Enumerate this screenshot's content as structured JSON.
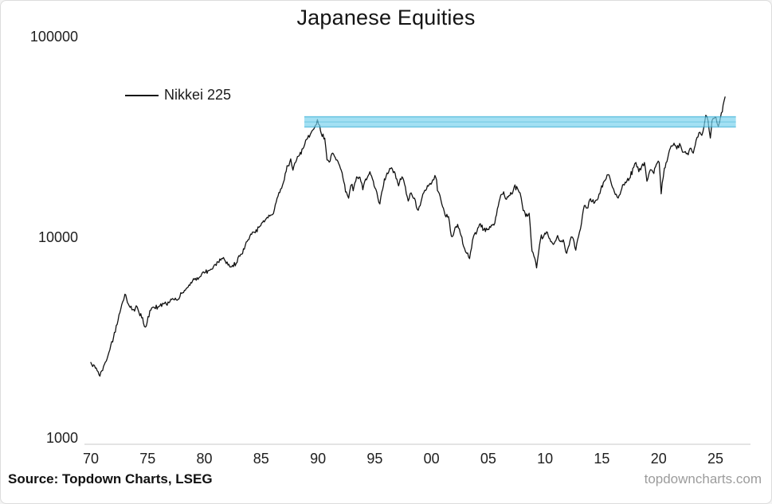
{
  "source": "Source: Topdown Charts, LSEG",
  "watermark": "topdowncharts.com",
  "chart_data": {
    "type": "line",
    "title": "Japanese Equities",
    "xlabel": "",
    "ylabel": "",
    "y_scale": "log",
    "ylim": [
      1000,
      100000
    ],
    "xlim": [
      1969.3,
      2027.2
    ],
    "grid": false,
    "legend_position": "upper-left",
    "y_ticks": [
      {
        "value": 100000,
        "label": "100000"
      },
      {
        "value": 10000,
        "label": "10000"
      },
      {
        "value": 1000,
        "label": "1000"
      }
    ],
    "x_ticks": [
      {
        "year": 1970,
        "label": "70"
      },
      {
        "year": 1975,
        "label": "75"
      },
      {
        "year": 1980,
        "label": "80"
      },
      {
        "year": 1985,
        "label": "85"
      },
      {
        "year": 1990,
        "label": "90"
      },
      {
        "year": 1995,
        "label": "95"
      },
      {
        "year": 2000,
        "label": "00"
      },
      {
        "year": 2005,
        "label": "05"
      },
      {
        "year": 2010,
        "label": "10"
      },
      {
        "year": 2015,
        "label": "15"
      },
      {
        "year": 2020,
        "label": "20"
      },
      {
        "year": 2025,
        "label": "25"
      }
    ],
    "resistance_band": {
      "from_year": 1988.8,
      "to_year": 2026.8,
      "value_top": 40200,
      "value_bottom": 35800,
      "fill": "#7dd4ee",
      "edge": "#35aed6",
      "opacity": 0.7
    },
    "series": [
      {
        "name": "Nikkei 225",
        "color": "#111111",
        "points": [
          [
            1970.0,
            2400
          ],
          [
            1970.4,
            2250
          ],
          [
            1970.8,
            2050
          ],
          [
            1971.2,
            2350
          ],
          [
            1971.6,
            2700
          ],
          [
            1972.0,
            3200
          ],
          [
            1972.4,
            3900
          ],
          [
            1972.8,
            4800
          ],
          [
            1973.0,
            5250
          ],
          [
            1973.3,
            4700
          ],
          [
            1973.7,
            4400
          ],
          [
            1974.0,
            4600
          ],
          [
            1974.4,
            4200
          ],
          [
            1974.8,
            3600
          ],
          [
            1975.2,
            4350
          ],
          [
            1975.6,
            4500
          ],
          [
            1976.0,
            4550
          ],
          [
            1976.4,
            4700
          ],
          [
            1976.8,
            4800
          ],
          [
            1977.2,
            5000
          ],
          [
            1977.6,
            4900
          ],
          [
            1978.0,
            5300
          ],
          [
            1978.4,
            5600
          ],
          [
            1978.8,
            6000
          ],
          [
            1979.2,
            6300
          ],
          [
            1979.6,
            6400
          ],
          [
            1980.0,
            6700
          ],
          [
            1980.4,
            6900
          ],
          [
            1980.8,
            7200
          ],
          [
            1981.2,
            7600
          ],
          [
            1981.6,
            7900
          ],
          [
            1982.0,
            7600
          ],
          [
            1982.4,
            7200
          ],
          [
            1982.8,
            7500
          ],
          [
            1983.2,
            8300
          ],
          [
            1983.6,
            9200
          ],
          [
            1984.0,
            10200
          ],
          [
            1984.4,
            10700
          ],
          [
            1984.8,
            11300
          ],
          [
            1985.2,
            12200
          ],
          [
            1985.6,
            12600
          ],
          [
            1986.0,
            13100
          ],
          [
            1986.4,
            15800
          ],
          [
            1986.8,
            17700
          ],
          [
            1987.2,
            21500
          ],
          [
            1987.6,
            24800
          ],
          [
            1987.8,
            21800
          ],
          [
            1988.2,
            25500
          ],
          [
            1988.6,
            27800
          ],
          [
            1989.0,
            31000
          ],
          [
            1989.4,
            33500
          ],
          [
            1989.7,
            35500
          ],
          [
            1989.95,
            38900
          ],
          [
            1990.15,
            36500
          ],
          [
            1990.3,
            33000
          ],
          [
            1990.6,
            31500
          ],
          [
            1990.8,
            24500
          ],
          [
            1991.0,
            23900
          ],
          [
            1991.3,
            26500
          ],
          [
            1991.6,
            24500
          ],
          [
            1991.9,
            23000
          ],
          [
            1992.2,
            20000
          ],
          [
            1992.5,
            17000
          ],
          [
            1992.7,
            15800
          ],
          [
            1992.9,
            18300
          ],
          [
            1993.1,
            17200
          ],
          [
            1993.4,
            20200
          ],
          [
            1993.7,
            20100
          ],
          [
            1993.95,
            17400
          ],
          [
            1994.2,
            19700
          ],
          [
            1994.5,
            20800
          ],
          [
            1994.8,
            19700
          ],
          [
            1995.1,
            17500
          ],
          [
            1995.45,
            14800
          ],
          [
            1995.7,
            17500
          ],
          [
            1996.0,
            20300
          ],
          [
            1996.4,
            22200
          ],
          [
            1996.8,
            21000
          ],
          [
            1997.1,
            18200
          ],
          [
            1997.4,
            20200
          ],
          [
            1997.7,
            18000
          ],
          [
            1997.95,
            15300
          ],
          [
            1998.2,
            16800
          ],
          [
            1998.5,
            15800
          ],
          [
            1998.75,
            13900
          ],
          [
            1999.0,
            14500
          ],
          [
            1999.4,
            17300
          ],
          [
            1999.8,
            18500
          ],
          [
            2000.1,
            19500
          ],
          [
            2000.3,
            20500
          ],
          [
            2000.6,
            17000
          ],
          [
            2000.9,
            14800
          ],
          [
            2001.2,
            13000
          ],
          [
            2001.5,
            12800
          ],
          [
            2001.75,
            10200
          ],
          [
            2002.0,
            10800
          ],
          [
            2002.3,
            11700
          ],
          [
            2002.6,
            10300
          ],
          [
            2002.9,
            8900
          ],
          [
            2003.1,
            8400
          ],
          [
            2003.35,
            7900
          ],
          [
            2003.7,
            10200
          ],
          [
            2004.0,
            10800
          ],
          [
            2004.3,
            11800
          ],
          [
            2004.6,
            11000
          ],
          [
            2004.9,
            11000
          ],
          [
            2005.2,
            11300
          ],
          [
            2005.5,
            11600
          ],
          [
            2005.8,
            14000
          ],
          [
            2006.1,
            16400
          ],
          [
            2006.35,
            17000
          ],
          [
            2006.6,
            15600
          ],
          [
            2006.9,
            16300
          ],
          [
            2007.2,
            17300
          ],
          [
            2007.5,
            18100
          ],
          [
            2007.8,
            16800
          ],
          [
            2008.0,
            14500
          ],
          [
            2008.3,
            12800
          ],
          [
            2008.6,
            13300
          ],
          [
            2008.85,
            8600
          ],
          [
            2009.1,
            7900
          ],
          [
            2009.25,
            7100
          ],
          [
            2009.6,
            9900
          ],
          [
            2009.9,
            10300
          ],
          [
            2010.2,
            10700
          ],
          [
            2010.5,
            9600
          ],
          [
            2010.8,
            9400
          ],
          [
            2011.1,
            10300
          ],
          [
            2011.35,
            9600
          ],
          [
            2011.6,
            9800
          ],
          [
            2011.9,
            8400
          ],
          [
            2012.2,
            9700
          ],
          [
            2012.4,
            10100
          ],
          [
            2012.7,
            8700
          ],
          [
            2012.95,
            10200
          ],
          [
            2013.2,
            11800
          ],
          [
            2013.45,
            14500
          ],
          [
            2013.7,
            14100
          ],
          [
            2014.0,
            15700
          ],
          [
            2014.3,
            14900
          ],
          [
            2014.6,
            15500
          ],
          [
            2014.9,
            17400
          ],
          [
            2015.2,
            19200
          ],
          [
            2015.55,
            20700
          ],
          [
            2015.8,
            19000
          ],
          [
            2016.1,
            17000
          ],
          [
            2016.35,
            16000
          ],
          [
            2016.6,
            16500
          ],
          [
            2016.9,
            18500
          ],
          [
            2017.2,
            19200
          ],
          [
            2017.5,
            20000
          ],
          [
            2017.8,
            22500
          ],
          [
            2018.0,
            23800
          ],
          [
            2018.25,
            21400
          ],
          [
            2018.5,
            22700
          ],
          [
            2018.75,
            23800
          ],
          [
            2018.97,
            19200
          ],
          [
            2019.2,
            21400
          ],
          [
            2019.5,
            21300
          ],
          [
            2019.8,
            23300
          ],
          [
            2020.05,
            23800
          ],
          [
            2020.22,
            16600
          ],
          [
            2020.5,
            22300
          ],
          [
            2020.8,
            25000
          ],
          [
            2021.1,
            28800
          ],
          [
            2021.35,
            29700
          ],
          [
            2021.6,
            27800
          ],
          [
            2021.85,
            29600
          ],
          [
            2022.1,
            26800
          ],
          [
            2022.35,
            27000
          ],
          [
            2022.6,
            26000
          ],
          [
            2022.85,
            28000
          ],
          [
            2023.05,
            26500
          ],
          [
            2023.3,
            30800
          ],
          [
            2023.55,
            33500
          ],
          [
            2023.8,
            32500
          ],
          [
            2024.0,
            36000
          ],
          [
            2024.15,
            40900
          ],
          [
            2024.35,
            38500
          ],
          [
            2024.55,
            31500
          ],
          [
            2024.7,
            38500
          ],
          [
            2024.9,
            39500
          ],
          [
            2025.05,
            39800
          ],
          [
            2025.25,
            36000
          ],
          [
            2025.45,
            40000
          ],
          [
            2025.6,
            42500
          ],
          [
            2025.75,
            48000
          ],
          [
            2025.85,
            50500
          ]
        ]
      }
    ]
  }
}
